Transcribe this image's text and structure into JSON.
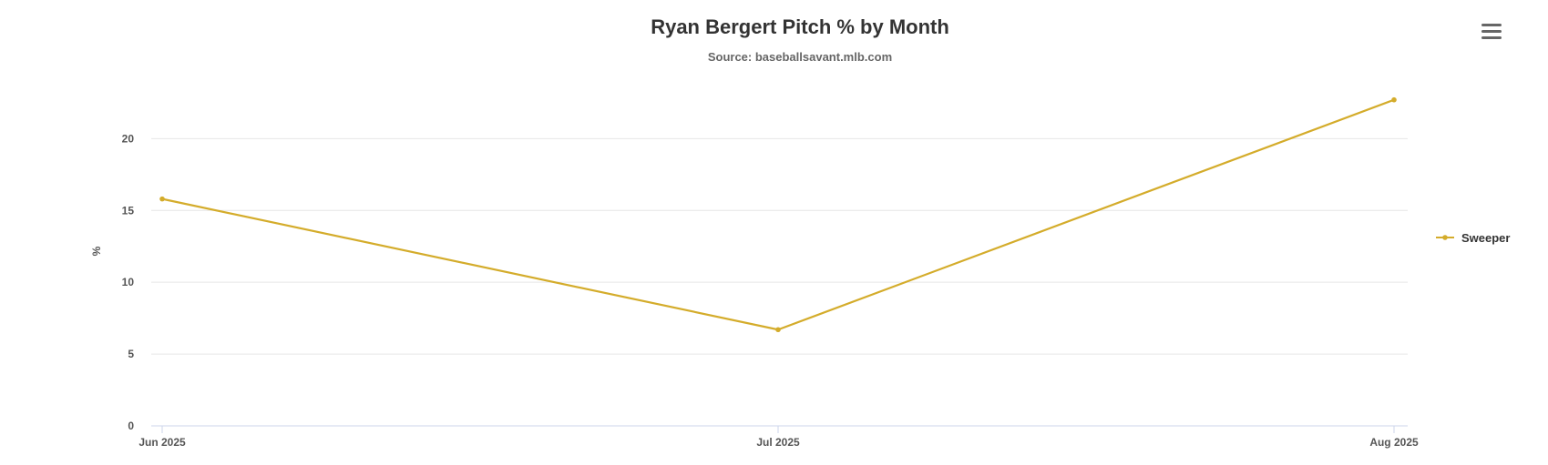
{
  "chart_data": {
    "type": "line",
    "title": "Ryan Bergert Pitch % by Month",
    "subtitle": "Source: baseballsavant.mlb.com",
    "xlabel": "",
    "ylabel": "%",
    "categories": [
      "Jun 2025",
      "Jul 2025",
      "Aug 2025"
    ],
    "yticks": [
      0,
      5,
      10,
      15,
      20
    ],
    "ylim": [
      0,
      23
    ],
    "grid": true,
    "legend_position": "right",
    "series": [
      {
        "name": "Sweeper",
        "color": "#d4ac2b",
        "values": [
          15.8,
          6.7,
          22.7
        ]
      }
    ]
  },
  "menu_icon": "hamburger-menu-icon"
}
